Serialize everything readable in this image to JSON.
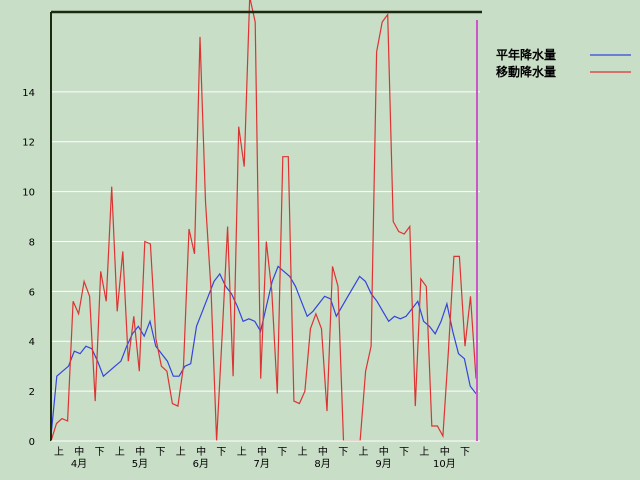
{
  "chart_data": {
    "type": "line",
    "title": "",
    "xlabel": "",
    "ylabel": "",
    "ylim": [
      0,
      17.2
    ],
    "y_ticks": [
      0,
      2,
      4,
      6,
      8,
      10,
      12,
      14
    ],
    "grid": "horizontal",
    "legend_position": "top-right",
    "x_period_labels": [
      "上",
      "中",
      "下",
      "上",
      "中",
      "下",
      "上",
      "中",
      "下",
      "上",
      "中",
      "下",
      "上",
      "中",
      "下",
      "上",
      "中",
      "下",
      "上",
      "中",
      "下"
    ],
    "x_month_labels": [
      "4月",
      "5月",
      "6月",
      "7月",
      "8月",
      "9月",
      "10月"
    ],
    "series": [
      {
        "name": "平年降水量",
        "color": "#3344dd",
        "values": [
          0.2,
          2.6,
          2.8,
          3.0,
          3.6,
          3.5,
          3.8,
          3.7,
          3.2,
          2.6,
          2.8,
          3.0,
          3.2,
          3.8,
          4.3,
          4.6,
          4.2,
          4.8,
          3.8,
          3.5,
          3.2,
          2.6,
          2.6,
          3.0,
          3.1,
          4.6,
          5.2,
          5.8,
          6.4,
          6.7,
          6.2,
          5.9,
          5.4,
          4.8,
          4.9,
          4.8,
          4.4,
          5.4,
          6.4,
          7.0,
          6.8,
          6.6,
          6.2,
          5.6,
          5.0,
          5.2,
          5.5,
          5.8,
          5.7,
          5.0,
          5.4,
          5.8,
          6.2,
          6.6,
          6.4,
          5.9,
          5.6,
          5.2,
          4.8,
          5.0,
          4.9,
          5.0,
          5.3,
          5.6,
          4.8,
          4.6,
          4.3,
          4.8,
          5.5,
          4.4,
          3.5,
          3.3,
          2.2,
          1.9
        ]
      },
      {
        "name": "移動降水量",
        "color": "#dd3333",
        "values": [
          0.0,
          0.7,
          0.9,
          0.8,
          5.6,
          5.1,
          6.4,
          5.8,
          1.6,
          6.8,
          5.6,
          10.2,
          5.2,
          7.6,
          3.2,
          5.0,
          2.8,
          8.0,
          7.9,
          4.1,
          3.0,
          2.8,
          1.5,
          1.4,
          3.0,
          8.5,
          7.5,
          16.2,
          9.6,
          6.0,
          0.0,
          4.2,
          8.6,
          2.6,
          12.6,
          11.0,
          17.8,
          16.8,
          2.5,
          8.0,
          6.0,
          1.9,
          11.4,
          11.4,
          1.6,
          1.5,
          2.0,
          4.5,
          5.1,
          4.5,
          1.2,
          7.0,
          6.2,
          0.0,
          0.0,
          0.0,
          0.0,
          2.8,
          3.8,
          15.6,
          16.8,
          17.1,
          8.8,
          8.4,
          8.3,
          8.6,
          1.4,
          6.5,
          6.2,
          0.6,
          0.6,
          0.2,
          3.6,
          7.4,
          7.4,
          3.8,
          5.8,
          2.5
        ]
      }
    ]
  }
}
